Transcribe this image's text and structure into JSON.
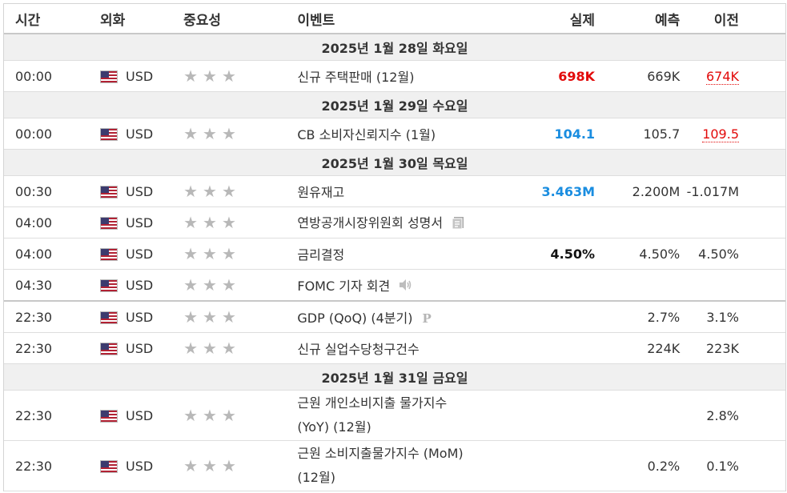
{
  "headers": {
    "time": "시간",
    "currency": "외화",
    "importance": "중요성",
    "event": "이벤트",
    "actual": "실제",
    "forecast": "예측",
    "previous": "이전"
  },
  "days": {
    "d1": "2025년 1월 28일 화요일",
    "d2": "2025년 1월 29일 수요일",
    "d3": "2025년 1월 30일 목요일",
    "d4": "2025년 1월 31일 금요일"
  },
  "stars": "★",
  "rows": [
    {
      "time": "00:00",
      "currency": "USD",
      "event": "신규 주택판매 (12월)",
      "actual": "698K",
      "forecast": "669K",
      "previous": "674K"
    },
    {
      "time": "00:00",
      "currency": "USD",
      "event": "CB 소비자신뢰지수 (1월)",
      "actual": "104.1",
      "forecast": "105.7",
      "previous": "109.5"
    },
    {
      "time": "00:30",
      "currency": "USD",
      "event": "원유재고",
      "actual": "3.463M",
      "forecast": "2.200M",
      "previous": "-1.017M"
    },
    {
      "time": "04:00",
      "currency": "USD",
      "event": "연방공개시장위원회 성명서",
      "actual": "",
      "forecast": "",
      "previous": ""
    },
    {
      "time": "04:00",
      "currency": "USD",
      "event": "금리결정",
      "actual": "4.50%",
      "forecast": "4.50%",
      "previous": "4.50%"
    },
    {
      "time": "04:30",
      "currency": "USD",
      "event": "FOMC 기자 회견",
      "actual": "",
      "forecast": "",
      "previous": ""
    },
    {
      "time": "22:30",
      "currency": "USD",
      "event": "GDP (QoQ) (4분기)",
      "actual": "",
      "forecast": "2.7%",
      "previous": "3.1%"
    },
    {
      "time": "22:30",
      "currency": "USD",
      "event": "신규 실업수당청구건수",
      "actual": "",
      "forecast": "224K",
      "previous": "223K"
    },
    {
      "time": "22:30",
      "currency": "USD",
      "event_line1": "근원 개인소비지출 물가지수",
      "event_line2": "(YoY) (12월)",
      "actual": "",
      "forecast": "",
      "previous": "2.8%"
    },
    {
      "time": "22:30",
      "currency": "USD",
      "event_line1": "근원 소비지출물가지수 (MoM)",
      "event_line2": "(12월)",
      "actual": "",
      "forecast": "0.2%",
      "previous": "0.1%"
    }
  ],
  "icons": {
    "flag": "us-flag-icon",
    "doc": "document-icon",
    "speaker": "speaker-icon",
    "preliminary": "P"
  },
  "colors": {
    "positive": "#1a8de0",
    "negative": "#e20a0a"
  }
}
